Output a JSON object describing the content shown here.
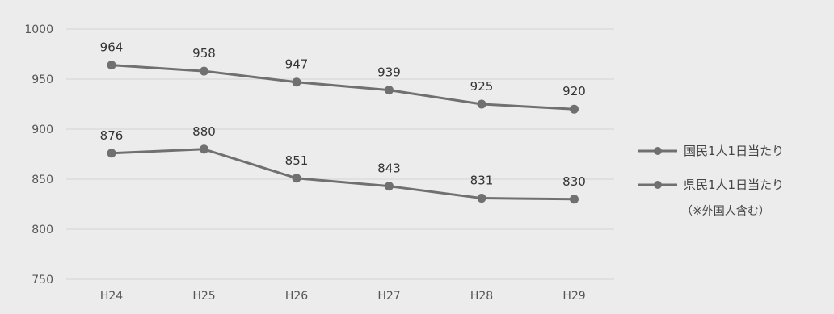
{
  "chart_data": {
    "type": "line",
    "categories": [
      "H24",
      "H25",
      "H26",
      "H27",
      "H28",
      "H29"
    ],
    "ylim": [
      750,
      1000
    ],
    "yticks": [
      1000,
      950,
      900,
      850,
      800,
      750
    ],
    "grid": true,
    "legend_position": "right",
    "series": [
      {
        "name": "国民1人1日当たり",
        "values": [
          964,
          958,
          947,
          939,
          925,
          920
        ],
        "color": "#707070"
      },
      {
        "name": "県民1人1日当たり",
        "values": [
          876,
          880,
          851,
          843,
          831,
          830
        ],
        "color": "#707070"
      }
    ],
    "legend_note": "（※外国人含む）"
  }
}
